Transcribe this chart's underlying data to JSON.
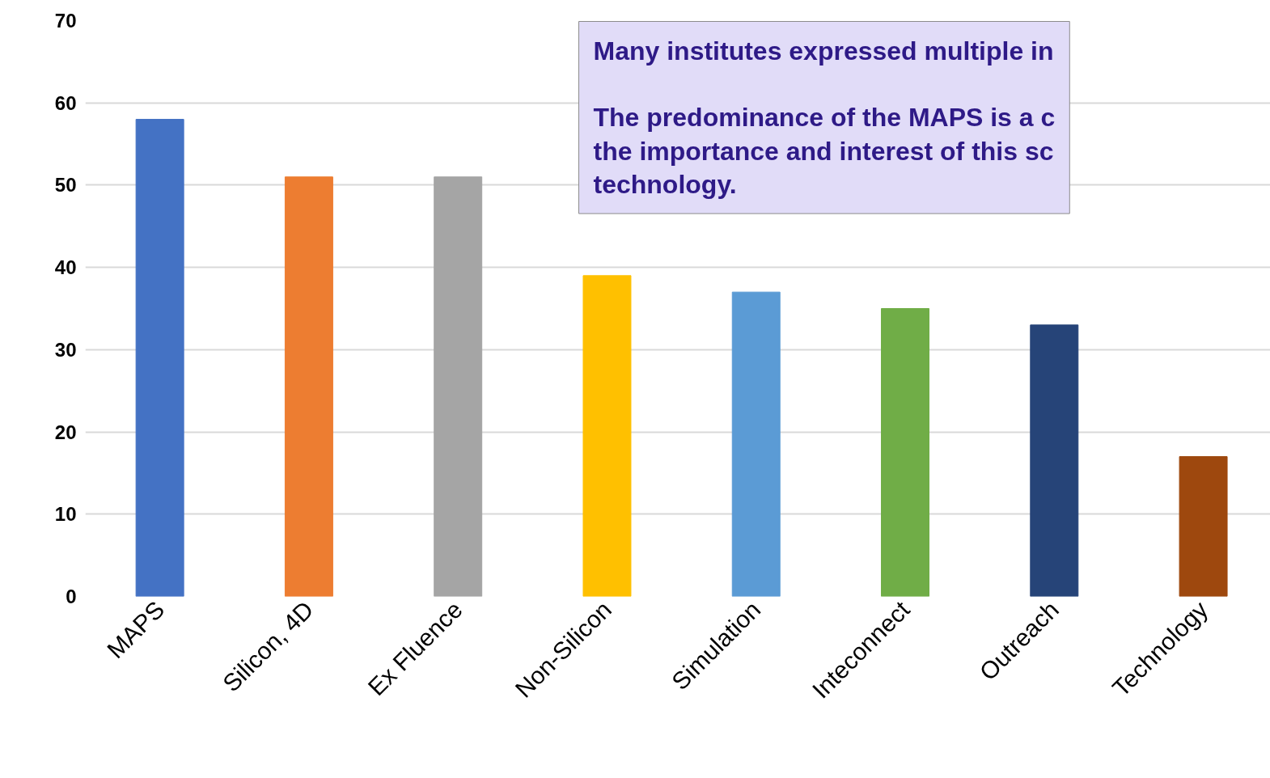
{
  "chart_data": {
    "type": "bar",
    "categories": [
      "MAPS",
      "Silicon, 4D",
      "Ex Fluence",
      "Non-Silicon",
      "Simulation",
      "Inteconnect",
      "Outreach",
      "Technology"
    ],
    "values": [
      58,
      51,
      51,
      39,
      37,
      35,
      33,
      17
    ],
    "colors": [
      "#4472c4",
      "#ed7d31",
      "#a5a5a5",
      "#ffc000",
      "#5b9bd5",
      "#70ad47",
      "#264478",
      "#9e480e"
    ],
    "ylim": [
      0,
      70
    ],
    "yticks": [
      0,
      10,
      20,
      30,
      40,
      50,
      60,
      70
    ],
    "grid": "y",
    "annotations": [
      "Many institutes expressed multiple in",
      "The predominance of the MAPS is a c\nthe importance and interest of this sc\ntechnology."
    ]
  }
}
